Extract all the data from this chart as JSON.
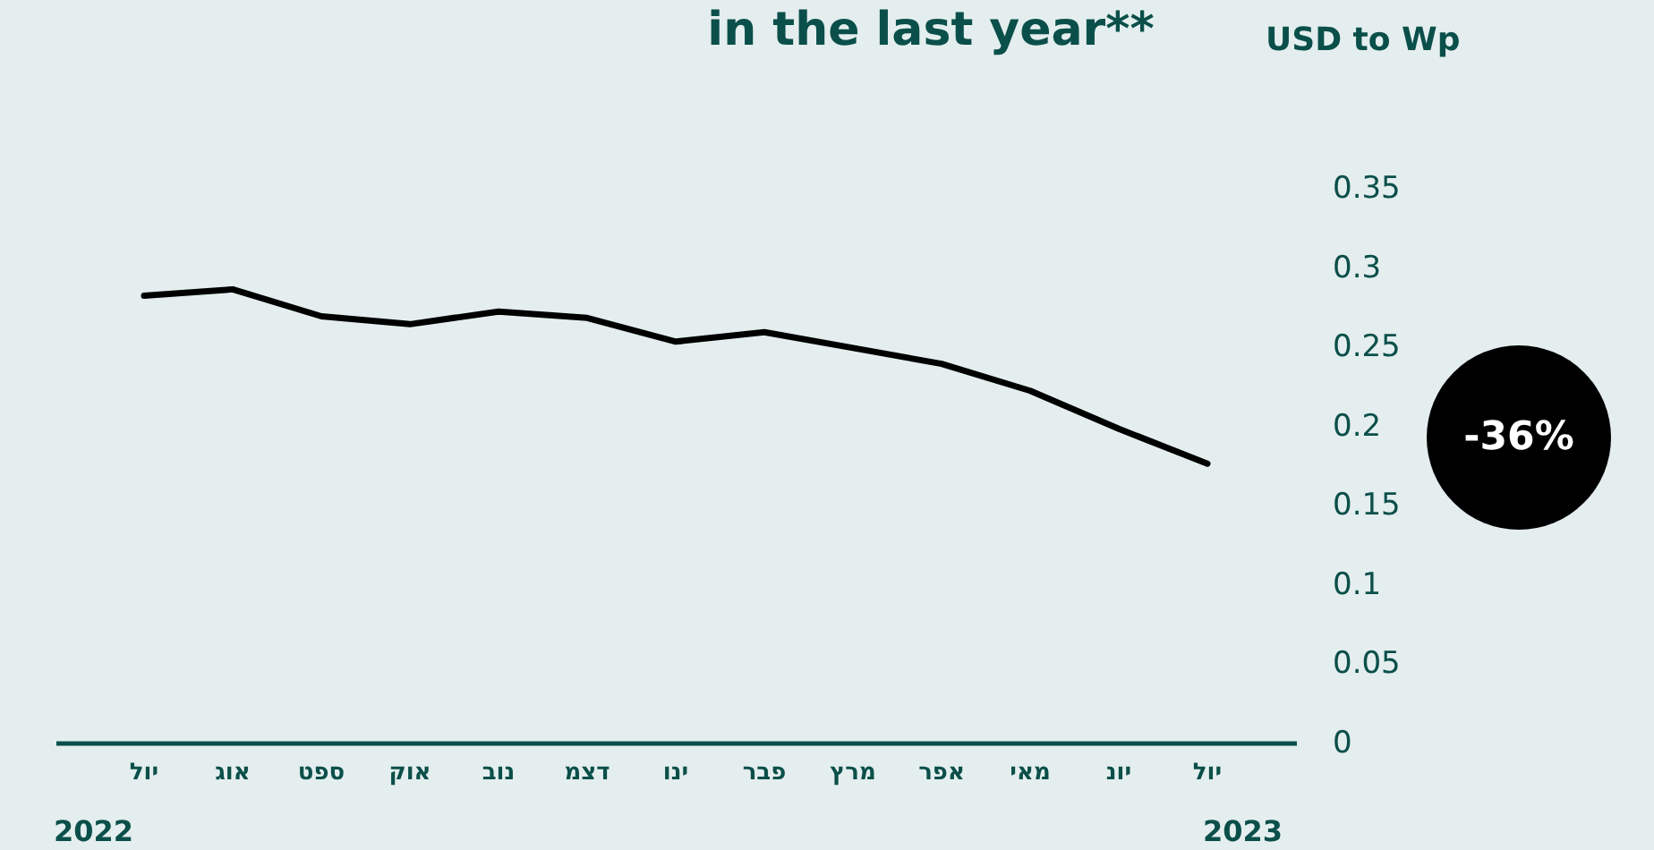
{
  "chart_data": {
    "type": "line",
    "title": "in the last year**",
    "ylabel": "USD to Wp",
    "categories": [
      "יול",
      "אוג",
      "ספט",
      "אוק",
      "נוב",
      "דצמ",
      "ינו",
      "פבר",
      "מרץ",
      "אפר",
      "מאי",
      "יונ",
      "יול"
    ],
    "series": [
      {
        "color": "#000000",
        "values": [
          0.282,
          0.286,
          0.269,
          0.264,
          0.272,
          0.268,
          0.253,
          0.259,
          0.249,
          0.239,
          0.222,
          0.198,
          0.176
        ]
      }
    ],
    "ylim": [
      0,
      0.35
    ],
    "yticks": [
      0,
      0.05,
      0.1,
      0.15,
      0.2,
      0.25,
      0.3,
      0.35
    ],
    "grid": false,
    "legend": false,
    "marker": "none",
    "line_style": "solid",
    "annotations": [
      "2022",
      "2023",
      "-36%"
    ]
  }
}
